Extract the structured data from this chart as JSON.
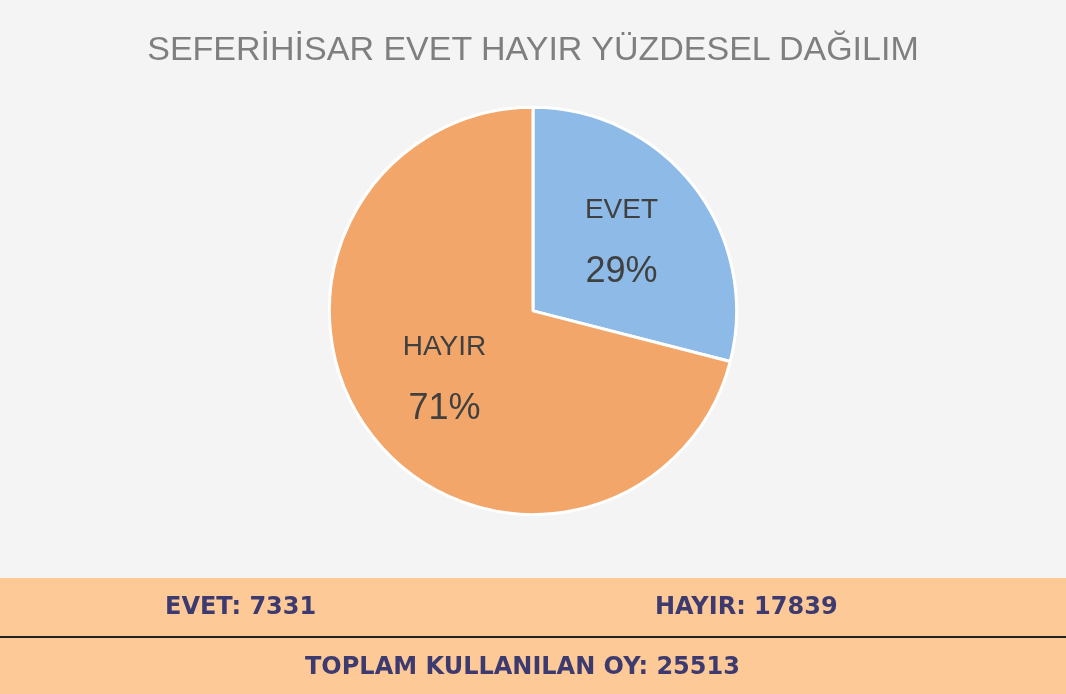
{
  "chart_data": {
    "type": "pie",
    "title": "SEFERİHİSAR EVET HAYIR YÜZDESEL DAĞILIM",
    "categories": [
      "EVET",
      "HAYIR"
    ],
    "values": [
      29,
      71
    ],
    "colors": [
      "#8dbae6",
      "#f3a66a"
    ],
    "value_labels": [
      "29%",
      "71%"
    ],
    "legend": false,
    "annotations": [
      "EVET: 7331",
      "HAYIR: 17839",
      "TOPLAM KULLANILAN OY: 25513"
    ]
  }
}
